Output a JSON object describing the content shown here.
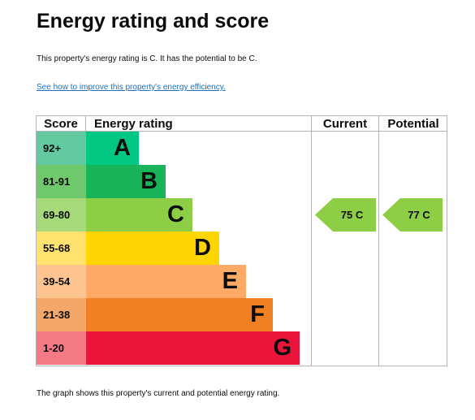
{
  "title": "Energy rating and score",
  "summary": "This property's energy rating is C. It has the potential to be C.",
  "improve_link": "See how to improve this property's energy efficiency.",
  "footer": "The graph shows this property's current and potential energy rating.",
  "chart_data": {
    "type": "bar",
    "headers": {
      "score": "Score",
      "energy": "Energy rating",
      "current": "Current",
      "potential": "Potential"
    },
    "bands": [
      {
        "range": "92+",
        "letter": "A",
        "score_color": "#62c9a1",
        "bar_color": "#00c781",
        "length": 1
      },
      {
        "range": "81-91",
        "letter": "B",
        "score_color": "#6fc96c",
        "bar_color": "#19b459",
        "length": 2
      },
      {
        "range": "69-80",
        "letter": "C",
        "score_color": "#a6d97a",
        "bar_color": "#8dce46",
        "length": 3
      },
      {
        "range": "55-68",
        "letter": "D",
        "score_color": "#ffe36e",
        "bar_color": "#ffd500",
        "length": 4
      },
      {
        "range": "39-54",
        "letter": "E",
        "score_color": "#fec48f",
        "bar_color": "#fcaa65",
        "length": 5
      },
      {
        "range": "21-38",
        "letter": "F",
        "score_color": "#f5a76a",
        "bar_color": "#ef8023",
        "length": 6
      },
      {
        "range": "1-20",
        "letter": "G",
        "score_color": "#f37985",
        "bar_color": "#e9153b",
        "length": 7
      }
    ],
    "current": {
      "label": "75  C",
      "score": 75,
      "letter": "C",
      "color": "#8dce46"
    },
    "potential": {
      "label": "77  C",
      "score": 77,
      "letter": "C",
      "color": "#8dce46"
    }
  }
}
